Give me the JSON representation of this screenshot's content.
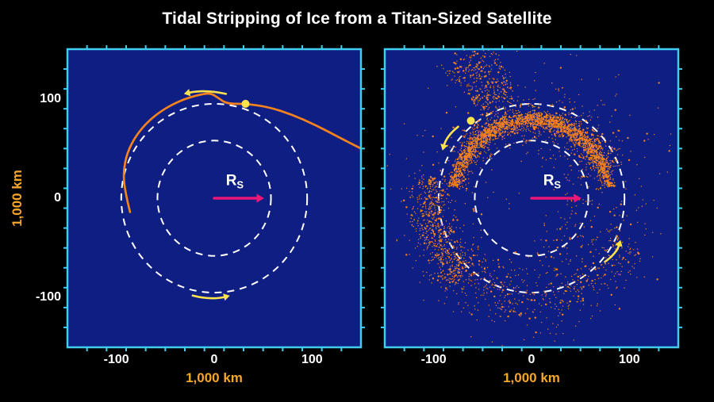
{
  "title": "Tidal Stripping of Ice from a Titan-Sized Satellite",
  "colors": {
    "page_bg": "#000000",
    "panel_bg": "#0e1e82",
    "panel_border": "#41cdef",
    "tick": "#41cdef",
    "dashed_circle": "#ffffff",
    "stream": "#f5821e",
    "particle": "#f5821e",
    "satellite": "#ffe34d",
    "arrow_yellow": "#ffe34d",
    "arrow_magenta": "#ee1678",
    "axis_text": "#ffffff",
    "unit_label": "#f7a62a"
  },
  "chart_data": {
    "type": "scatter",
    "title": "Tidal Stripping of Ice from a Titan-Sized Satellite",
    "axes": {
      "xlim": [
        -150,
        150
      ],
      "ylim": [
        -150,
        150
      ],
      "x_ticks_labeled": [
        "-100",
        "0",
        "100"
      ],
      "y_ticks_labeled": [
        "100",
        "0",
        "-100"
      ],
      "minor_tick_step": 20,
      "xlabel": "1,000 km",
      "ylabel": "1,000 km",
      "grid": false
    },
    "panels": [
      {
        "id": "left",
        "dashed_circles_r": [
          58,
          95
        ],
        "rs_arrow": {
          "from": [
            0,
            0
          ],
          "to": [
            51,
            0
          ],
          "label": "R",
          "sub": "S",
          "label_pos": [
            21,
            13
          ]
        },
        "satellite_pos": [
          32,
          95
        ],
        "direction_arrows": [
          {
            "from": [
              12,
              105
            ],
            "to": [
              -31,
              105
            ],
            "bend": 6
          },
          {
            "from": [
              -22,
              -98
            ],
            "to": [
              16,
              -98
            ],
            "bend": 6
          }
        ],
        "stream_path": [
          [
            -86,
            -14
          ],
          [
            -91,
            6
          ],
          [
            -93,
            26
          ],
          [
            -89,
            46
          ],
          [
            -80,
            63
          ],
          [
            -67,
            78
          ],
          [
            -51,
            90
          ],
          [
            -33,
            99
          ],
          [
            -16,
            104
          ],
          [
            -4,
            106
          ],
          [
            4,
            101
          ],
          [
            13,
            95
          ],
          [
            32,
            95
          ],
          [
            55,
            92
          ],
          [
            80,
            84
          ],
          [
            105,
            73
          ],
          [
            128,
            61
          ],
          [
            150,
            50
          ]
        ]
      },
      {
        "id": "right",
        "dashed_circles_r": [
          58,
          95
        ],
        "rs_arrow": {
          "from": [
            0,
            0
          ],
          "to": [
            51,
            0
          ],
          "label": "R",
          "sub": "S",
          "label_pos": [
            21,
            13
          ]
        },
        "satellite_pos": [
          -62,
          78
        ],
        "direction_arrows": [
          {
            "from": [
              -75,
              72
            ],
            "to": [
              -91,
              48
            ],
            "bend": 6
          },
          {
            "from": [
              75,
              -64
            ],
            "to": [
              91,
              -42
            ],
            "bend": 6
          }
        ],
        "particle_arcs": [
          {
            "count": 2100,
            "r": 79,
            "r_sigma": 4,
            "a0": 8,
            "a1": 172,
            "seed": 11
          },
          {
            "count": 750,
            "r": 81,
            "r_sigma": 10,
            "a0": 20,
            "a1": 150,
            "seed": 22
          },
          {
            "count": 600,
            "r": 105,
            "r_sigma": 10,
            "a0": 168,
            "a1": 228,
            "seed": 33
          },
          {
            "count": 170,
            "r": 114,
            "r_sigma": 8,
            "a0": 100,
            "a1": 122,
            "seed": 44
          },
          {
            "count": 170,
            "r": 143,
            "r_sigma": 11,
            "a0": 103,
            "a1": 125,
            "seed": 45
          },
          {
            "count": 430,
            "r": 104,
            "r_sigma": 14,
            "a0": 212,
            "a1": 338,
            "seed": 55
          },
          {
            "count": 520,
            "r": 100,
            "r_sigma": 30,
            "a0": -180,
            "a1": 180,
            "seed": 66
          },
          {
            "count": 110,
            "r": 52,
            "r_sigma": 12,
            "a0": -85,
            "a1": 85,
            "seed": 77
          }
        ]
      }
    ]
  }
}
